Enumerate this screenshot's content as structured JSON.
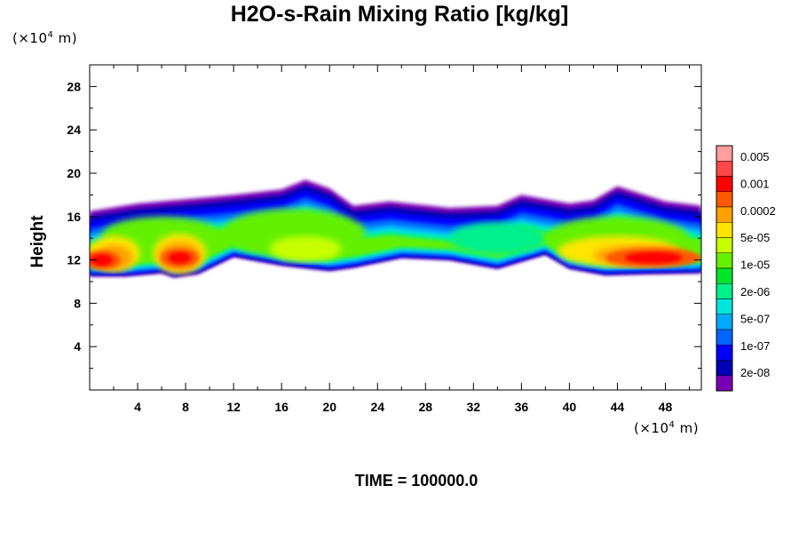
{
  "title": "H2O-s-Rain Mixing Ratio [kg/kg]",
  "y_unit": {
    "prefix": "(×10",
    "exp": "4",
    "suffix": " m)"
  },
  "x_unit": {
    "prefix": "(×10",
    "exp": "4",
    "suffix": " m)"
  },
  "time_label": "TIME = 100000.0",
  "chart_data": {
    "type": "heatmap",
    "title": "H2O-s-Rain Mixing Ratio [kg/kg]",
    "xlabel": "(×10^4 m)",
    "ylabel": "Height",
    "xlim": [
      0,
      51
    ],
    "ylim": [
      0,
      30
    ],
    "x_ticks": [
      4,
      8,
      12,
      16,
      20,
      24,
      28,
      32,
      36,
      40,
      44,
      48
    ],
    "y_ticks": [
      4,
      8,
      12,
      16,
      20,
      24,
      28
    ],
    "legend_position": "right",
    "colorbar": {
      "labels": [
        "0.005",
        "0.001",
        "0.0002",
        "5e-05",
        "1e-05",
        "2e-06",
        "5e-07",
        "1e-07",
        "2e-08"
      ],
      "colors": [
        "#ff9c9c",
        "#ff4747",
        "#ff0000",
        "#ff5a00",
        "#ffa200",
        "#ffe600",
        "#c8ff00",
        "#64f000",
        "#00e628",
        "#00f08c",
        "#00e6dc",
        "#00aaff",
        "#0064ff",
        "#0000ff",
        "#0000b4",
        "#7800b4"
      ]
    },
    "cloud_base_profile": [
      [
        0,
        10.5
      ],
      [
        3,
        10.5
      ],
      [
        6,
        10.8
      ],
      [
        7,
        10.4
      ],
      [
        9,
        10.7
      ],
      [
        12,
        12.3
      ],
      [
        16,
        11.5
      ],
      [
        20,
        11.0
      ],
      [
        22,
        11.3
      ],
      [
        26,
        12.2
      ],
      [
        30,
        12.0
      ],
      [
        34,
        11.2
      ],
      [
        38,
        12.5
      ],
      [
        40,
        11.2
      ],
      [
        43,
        10.6
      ],
      [
        46,
        10.7
      ],
      [
        51,
        10.8
      ]
    ],
    "cloud_top_profile": [
      [
        0,
        16.5
      ],
      [
        4,
        17.2
      ],
      [
        8,
        17.6
      ],
      [
        12,
        18.0
      ],
      [
        16,
        18.5
      ],
      [
        18,
        19.4
      ],
      [
        20,
        18.6
      ],
      [
        22,
        17.0
      ],
      [
        25,
        17.4
      ],
      [
        30,
        16.8
      ],
      [
        34,
        17.0
      ],
      [
        36,
        18.0
      ],
      [
        40,
        17.2
      ],
      [
        42,
        17.5
      ],
      [
        44,
        18.8
      ],
      [
        48,
        17.4
      ],
      [
        51,
        17.0
      ]
    ],
    "cores": [
      {
        "x": 1.0,
        "y": 12.0,
        "level": "0.001"
      },
      {
        "x": 7.5,
        "y": 12.2,
        "level": "0.001"
      },
      {
        "x": 47.0,
        "y": 12.2,
        "level": "0.001"
      }
    ]
  }
}
